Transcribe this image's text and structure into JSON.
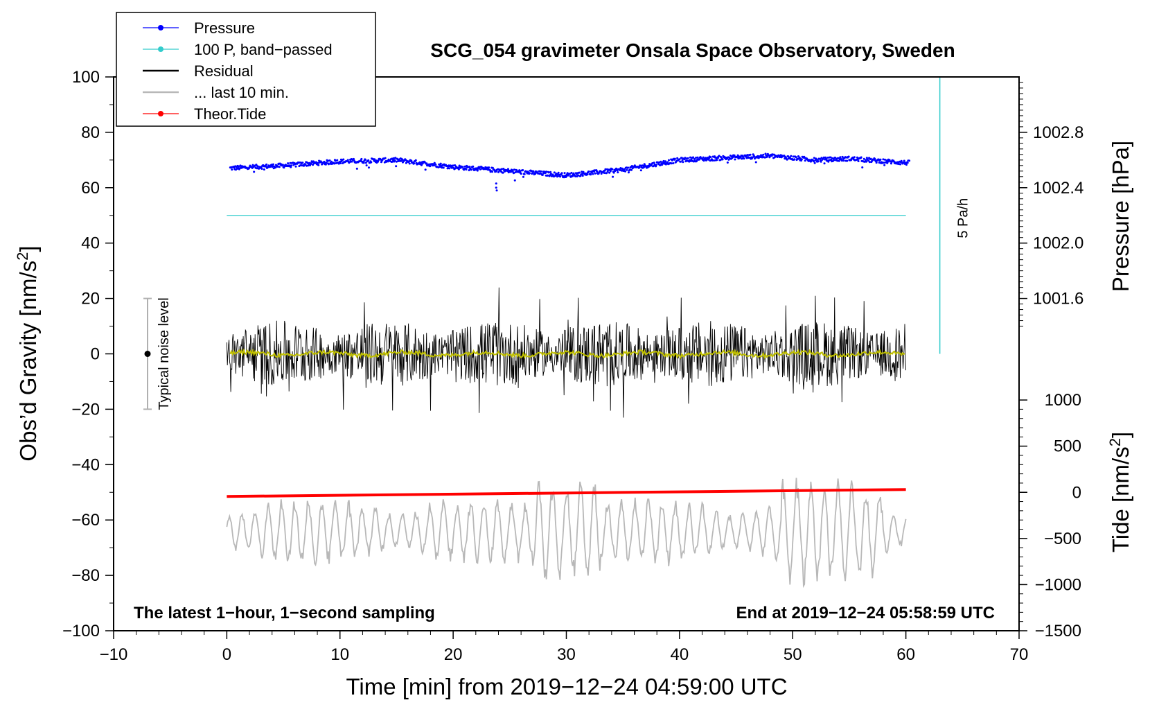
{
  "chart_data": {
    "type": "line",
    "title": "SCG_054 gravimeter Onsala Space Observatory, Sweden",
    "xlabel": "Time [min] from 2019−12−24 04:59:00 UTC",
    "ylabel": "Obs’d Gravity [nm/s",
    "ylabel_sup": "2",
    "ylabel_end": "]",
    "y2_label": "Pressure [hPa]",
    "y3_label": "Tide [nm/s",
    "y3_label_sup": "2",
    "y3_label_end": "]",
    "xlim": [
      -10,
      70
    ],
    "ylim": [
      -100,
      100
    ],
    "x_ticks": [
      "−10",
      "0",
      "10",
      "20",
      "30",
      "40",
      "50",
      "60",
      "70"
    ],
    "x_tick_values": [
      -10,
      0,
      10,
      20,
      30,
      40,
      50,
      60,
      70
    ],
    "y_ticks": [
      "100",
      "80",
      "60",
      "40",
      "20",
      "0",
      "−20",
      "−40",
      "−60",
      "−80",
      "−100"
    ],
    "y_tick_values": [
      100,
      80,
      60,
      40,
      20,
      0,
      -20,
      -40,
      -60,
      -80,
      -100
    ],
    "pressure_axis": {
      "ticks": [
        "1002.8",
        "1002.4",
        "1002.0",
        "1001.6"
      ],
      "tick_values": [
        1002.8,
        1002.4,
        1002.0,
        1001.6
      ],
      "gravity_equiv": [
        80,
        60,
        40,
        20
      ]
    },
    "tide_axis": {
      "ticks": [
        "1000",
        "500",
        "0",
        "−500",
        "−1000",
        "−1500"
      ],
      "tick_values": [
        1000,
        500,
        0,
        -500,
        -1000,
        -1500
      ],
      "gravity_equiv": [
        -16.67,
        -33.33,
        -50,
        -66.67,
        -83.33,
        -100
      ]
    },
    "legend": [
      {
        "label": "Pressure",
        "color": "#0000ff",
        "marker": true
      },
      {
        "label": "100 P, band−passed",
        "color": "#33cccc",
        "marker": true
      },
      {
        "label": "Residual",
        "color": "#000000",
        "marker": false
      },
      {
        "label": "... last 10 min.",
        "color": "#b8b8b8",
        "marker": false
      },
      {
        "label": "Theor.Tide",
        "color": "#ff0000",
        "marker": true
      }
    ],
    "series": [
      {
        "name": "Pressure",
        "color": "#0000ff",
        "style": "dots",
        "x": [
          0,
          5,
          10,
          15,
          20,
          25,
          30,
          35,
          40,
          45,
          48,
          52,
          55,
          60
        ],
        "y": [
          67,
          68,
          69.5,
          70,
          67.5,
          66,
          64.5,
          66.5,
          70,
          71,
          71.5,
          70,
          70.5,
          69
        ]
      },
      {
        "name": "100 P, band−passed",
        "color": "#33cccc",
        "x": [
          0,
          60
        ],
        "y": [
          50,
          50
        ]
      },
      {
        "name": "Residual",
        "color": "#000000",
        "style": "noise",
        "x_range": [
          0,
          60
        ],
        "center": 0,
        "amplitude_typical": 10,
        "amplitude_max": 30
      },
      {
        "name": "Residual smoothed",
        "color": "#c0c000",
        "x_range": [
          0,
          60
        ],
        "center": 0,
        "amplitude": 1.5
      },
      {
        "name": "... last 10 min.",
        "color": "#b8b8b8",
        "style": "oscillation",
        "x_range": [
          0,
          60
        ],
        "center": -64,
        "amplitude_typical": 10,
        "amplitude_max": 30
      },
      {
        "name": "Theor.Tide",
        "color": "#ff0000",
        "x": [
          0,
          60
        ],
        "y": [
          -51.5,
          -49
        ]
      }
    ],
    "noise_bar": {
      "label": "Typical noise level",
      "x": -7,
      "y": 0,
      "low": -20,
      "high": 20
    },
    "rate_bar": {
      "label": "5 Pa/h",
      "x": 63,
      "y_from": 0,
      "y_to": 100,
      "color": "#33cccc"
    },
    "annotations": {
      "bottom_left": "The latest 1−hour, 1−second sampling",
      "bottom_right": "End at 2019−12−24 05:58:59 UTC"
    }
  }
}
